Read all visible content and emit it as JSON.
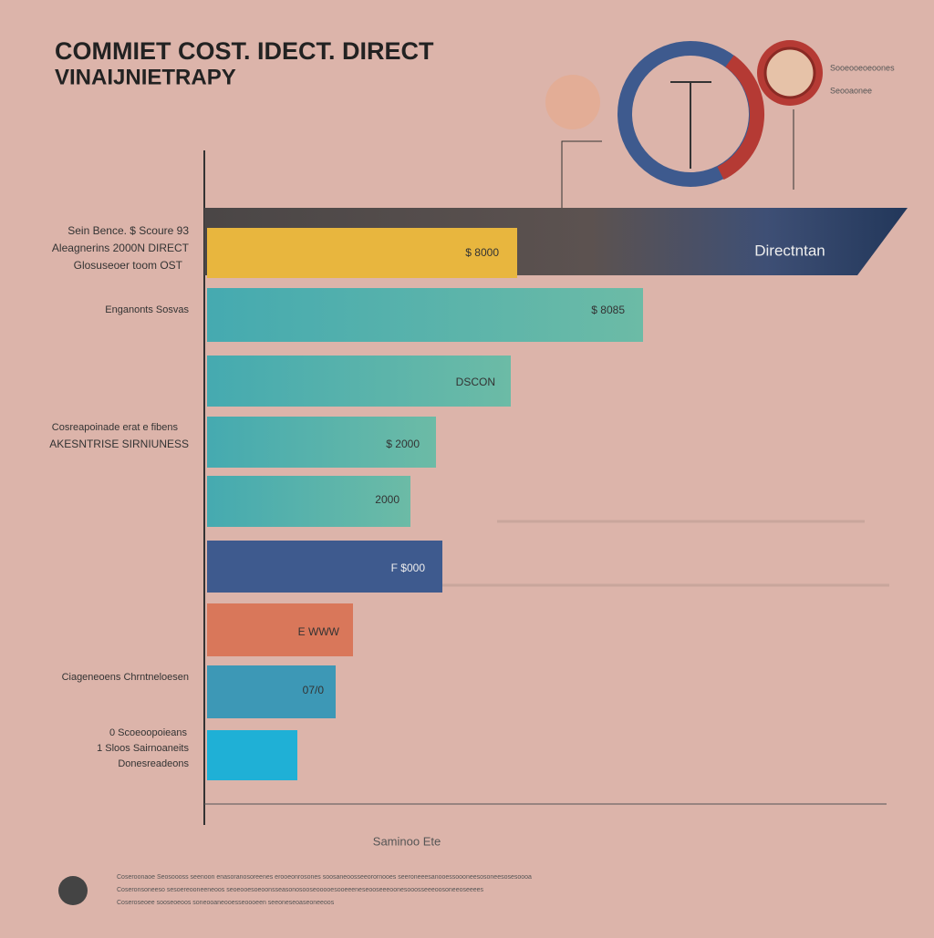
{
  "header": {
    "title": "COMMIET COST. IDECT. DIRECT",
    "subtitle": "VINAIJNIETRAPY"
  },
  "banner": "Directntan",
  "bars": [
    {
      "label": "$ 8000"
    },
    {
      "label": "$ 8085"
    },
    {
      "label": "DSCON"
    },
    {
      "label": "$ 2000"
    },
    {
      "label": "2000"
    },
    {
      "label": "F $000"
    },
    {
      "label": "E WWW"
    },
    {
      "label": "07/0"
    }
  ],
  "side_labels": [
    "Sein Bence. $ Scoure 93",
    "Aleagnerins 2000N DIRECT",
    "Glosuseoer toom OST",
    "Enganonts Sosvas",
    "Cosreapoinade erat e fibens",
    "AKESNTRISE SIRNIUNESS",
    "Ciageneoens Chrntneloesen",
    "0 Scoeoopoieans",
    "1 Sloos Sairnoaneits",
    "Donesreadeons"
  ],
  "badge_labels": [
    "Sooeooeoeoones",
    "Seooaonee"
  ],
  "x_label": "Saminoo Ete",
  "footer": [
    "Coseroonaoe Seosoooss seenoon enasoranosoreenes erooeonrosones soosaneoosseeorornooes seeroneeesanooessoooneesosoneesosesoooa",
    "Coseronsoneeso sesoereooneeneoos seoeooesoeoonsseasonosooseooooesooeeeneseooseeeoonesooosseeeoosoneeoseeees",
    "Coseroseoee sooseoeoos soneooaneooesseoooeen seeoneseoaseoneeoos"
  ]
}
